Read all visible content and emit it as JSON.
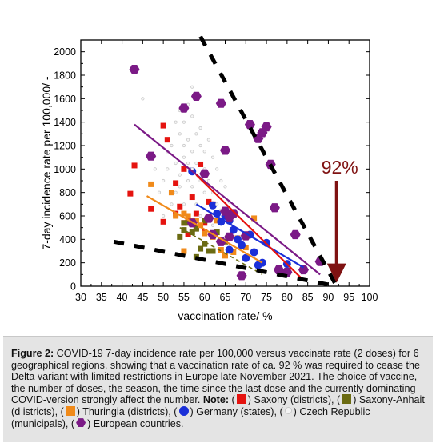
{
  "chart_data": {
    "type": "scatter",
    "xlabel": "vaccination rate/ %",
    "ylabel": "7-day incidence rate per 100,000/ -",
    "xlim": [
      30,
      100
    ],
    "ylim": [
      0,
      2100
    ],
    "x_ticks": [
      "30",
      "35",
      "40",
      "45",
      "50",
      "55",
      "60",
      "65",
      "70",
      "75",
      "80",
      "85",
      "90",
      "95",
      "100"
    ],
    "y_ticks": [
      "0",
      "200",
      "400",
      "600",
      "800",
      "1000",
      "1200",
      "1400",
      "1600",
      "1800",
      "2000"
    ],
    "annotation": {
      "text": "92%",
      "x": 92,
      "y_from": 900,
      "y_to": 30,
      "color": "#7f1212"
    },
    "series": [
      {
        "name": "Saxony (districts)",
        "marker": "square",
        "color": "#e5130f",
        "points": [
          [
            42,
            790
          ],
          [
            43,
            1030
          ],
          [
            47,
            660
          ],
          [
            50,
            1370
          ],
          [
            51,
            1250
          ],
          [
            50,
            550
          ],
          [
            53,
            880
          ],
          [
            54,
            680
          ],
          [
            55,
            540
          ],
          [
            56,
            440
          ],
          [
            57,
            760
          ],
          [
            58,
            620
          ],
          [
            59,
            1040
          ],
          [
            60,
            460
          ],
          [
            62,
            700
          ],
          [
            55,
            1000
          ],
          [
            58,
            500
          ],
          [
            53,
            620
          ],
          [
            56,
            560
          ],
          [
            60,
            540
          ],
          [
            61,
            720
          ]
        ]
      },
      {
        "name": "Saxony-Anhait (d istricts)",
        "marker": "square",
        "color": "#6b6b12",
        "points": [
          [
            54,
            420
          ],
          [
            55,
            480
          ],
          [
            56,
            540
          ],
          [
            57,
            460
          ],
          [
            58,
            490
          ],
          [
            59,
            320
          ],
          [
            60,
            360
          ],
          [
            61,
            300
          ],
          [
            62,
            300
          ],
          [
            58,
            250
          ],
          [
            55,
            540
          ],
          [
            63,
            460
          ],
          [
            65,
            380
          ],
          [
            60,
            560
          ]
        ]
      },
      {
        "name": "Thuringia (districts)",
        "marker": "square",
        "color": "#f08a1a",
        "points": [
          [
            47,
            870
          ],
          [
            52,
            800
          ],
          [
            55,
            300
          ],
          [
            55,
            620
          ],
          [
            57,
            560
          ],
          [
            58,
            560
          ],
          [
            60,
            450
          ],
          [
            62,
            420
          ],
          [
            63,
            560
          ],
          [
            64,
            310
          ],
          [
            65,
            260
          ],
          [
            67,
            290
          ],
          [
            68,
            410
          ],
          [
            70,
            330
          ],
          [
            72,
            580
          ],
          [
            56,
            600
          ],
          [
            53,
            600
          ],
          [
            59,
            520
          ]
        ]
      },
      {
        "name": "Germany (states)",
        "marker": "circle",
        "color": "#1a2fd8",
        "points": [
          [
            57,
            980
          ],
          [
            62,
            690
          ],
          [
            63,
            620
          ],
          [
            64,
            550
          ],
          [
            65,
            600
          ],
          [
            66,
            560
          ],
          [
            66,
            310
          ],
          [
            67,
            480
          ],
          [
            68,
            400
          ],
          [
            69,
            350
          ],
          [
            70,
            240
          ],
          [
            71,
            440
          ],
          [
            72,
            290
          ],
          [
            73,
            180
          ],
          [
            74,
            200
          ],
          [
            75,
            370
          ],
          [
            80,
            190
          ]
        ]
      },
      {
        "name": "Czech Republic (municipals)",
        "marker": "dot",
        "color": "#c9c9c9",
        "points": [
          [
            48,
            1000
          ],
          [
            50,
            900
          ],
          [
            51,
            1150
          ],
          [
            52,
            1200
          ],
          [
            53,
            1050
          ],
          [
            54,
            1300
          ],
          [
            54,
            950
          ],
          [
            55,
            1100
          ],
          [
            55,
            1400
          ],
          [
            56,
            1250
          ],
          [
            56,
            900
          ],
          [
            57,
            1150
          ],
          [
            57,
            1450
          ],
          [
            58,
            1300
          ],
          [
            58,
            1050
          ],
          [
            59,
            1200
          ],
          [
            59,
            900
          ],
          [
            60,
            1150
          ],
          [
            60,
            1000
          ],
          [
            61,
            1250
          ],
          [
            62,
            1100
          ],
          [
            61,
            900
          ],
          [
            62,
            800
          ],
          [
            63,
            1000
          ],
          [
            52,
            700
          ],
          [
            53,
            800
          ],
          [
            54,
            850
          ],
          [
            56,
            1550
          ],
          [
            57,
            1700
          ],
          [
            58,
            1600
          ],
          [
            59,
            1350
          ],
          [
            60,
            800
          ],
          [
            55,
            700
          ],
          [
            57,
            850
          ],
          [
            58,
            700
          ],
          [
            59,
            600
          ],
          [
            63,
            700
          ],
          [
            64,
            900
          ],
          [
            65,
            850
          ],
          [
            50,
            600
          ],
          [
            49,
            800
          ],
          [
            45,
            1600
          ],
          [
            54,
            1500
          ],
          [
            55,
            1200
          ],
          [
            56,
            1050
          ],
          [
            57,
            1000
          ],
          [
            53,
            1400
          ],
          [
            51,
            1000
          ],
          [
            61,
            600
          ],
          [
            62,
            520
          ],
          [
            64,
            650
          ],
          [
            66,
            720
          ]
        ]
      },
      {
        "name": "European countries.",
        "marker": "hexagon",
        "color": "#7b1a86",
        "points": [
          [
            43,
            1850
          ],
          [
            47,
            1110
          ],
          [
            55,
            1520
          ],
          [
            58,
            1620
          ],
          [
            60,
            960
          ],
          [
            62,
            440
          ],
          [
            64,
            1560
          ],
          [
            65,
            1160
          ],
          [
            65,
            640
          ],
          [
            66,
            420
          ],
          [
            66,
            590
          ],
          [
            67,
            620
          ],
          [
            64,
            380
          ],
          [
            69,
            90
          ],
          [
            70,
            430
          ],
          [
            71,
            1380
          ],
          [
            73,
            1260
          ],
          [
            74,
            1310
          ],
          [
            75,
            1360
          ],
          [
            76,
            1040
          ],
          [
            77,
            670
          ],
          [
            78,
            140
          ],
          [
            80,
            120
          ],
          [
            82,
            440
          ],
          [
            84,
            140
          ],
          [
            88,
            210
          ],
          [
            57,
            540
          ],
          [
            61,
            580
          ]
        ]
      }
    ],
    "trend_lines": [
      {
        "color": "#7b1a86",
        "style": "solid",
        "from": [
          43,
          1380
        ],
        "to": [
          88,
          100
        ]
      },
      {
        "color": "#1a2fd8",
        "style": "solid",
        "from": [
          58,
          700
        ],
        "to": [
          84,
          160
        ]
      },
      {
        "color": "#e5130f",
        "style": "solid",
        "from": [
          58,
          950
        ],
        "to": [
          84,
          50
        ]
      },
      {
        "color": "#f08a1a",
        "style": "solid",
        "from": [
          46,
          770
        ],
        "to": [
          74,
          200
        ]
      },
      {
        "color": "#6b6b12",
        "style": "dashed",
        "from": [
          54,
          500
        ],
        "to": [
          74,
          100
        ]
      },
      {
        "color": "#000000",
        "style": "heavy-dashed",
        "from": [
          59,
          2130
        ],
        "to": [
          92,
          0
        ]
      },
      {
        "color": "#000000",
        "style": "heavy-dashed",
        "from": [
          38,
          380
        ],
        "to": [
          92,
          0
        ]
      }
    ]
  },
  "caption": {
    "label": "Figure 2:",
    "text_main": " COVID-19 7-day incidence rate per 100,000 versus vaccinate rate (2 doses) for 6 geographical regions, showing that a vaccination rate of ca. 92 % was required to cease the Delta variant with limited restrictions in Europe late November 2021. The choice of vaccine, the number of doses, the season, the time since the last dose and the currently dominating COVID-version strongly affect the number. ",
    "note_label": "Note:",
    "legend_open": " (",
    "legend_saxony": ") Saxony (districts), (",
    "legend_anhalt": ") Saxony-Anhait (d istricts), (",
    "legend_thuringia": ") Thuringia (districts), (",
    "legend_germany": ") Germany (states), (",
    "legend_czech": ") Czech Republic (municipals), (",
    "legend_europe": ") European countries."
  },
  "colors": {
    "saxony": "#e5130f",
    "anhalt": "#6b6b12",
    "thuringia": "#f08a1a",
    "germany": "#1a2fd8",
    "czech": "#c9c9c9",
    "europe": "#7b1a86",
    "arrow": "#7f1212"
  }
}
